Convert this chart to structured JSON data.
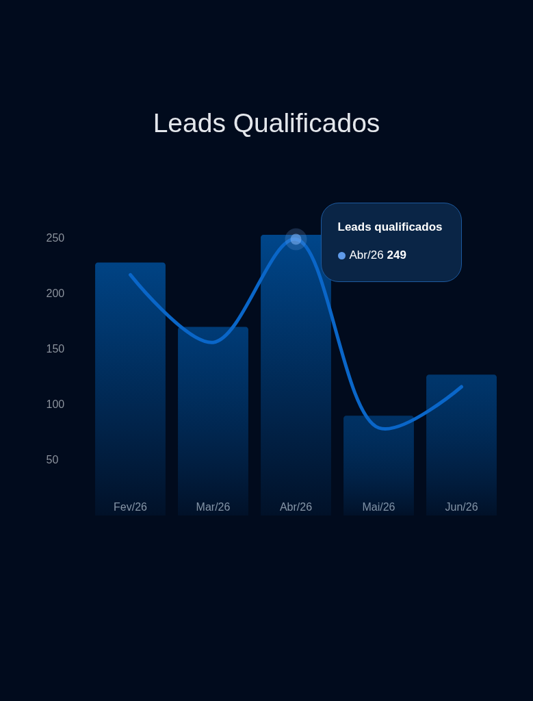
{
  "chart_data": {
    "type": "bar",
    "title": "Leads Qualificados",
    "categories": [
      "Fev/26",
      "Mar/26",
      "Abr/26",
      "Mai/26",
      "Jun/26"
    ],
    "series": [
      {
        "color": "#00468a",
        "values": [
          228,
          170,
          253,
          90,
          127
        ]
      },
      {
        "type": "line",
        "color": "#0a66c8",
        "values": [
          217,
          156,
          249,
          79,
          116
        ]
      },
      {
        "type": "scatter",
        "color": "#74aaee",
        "values": [
          null,
          null,
          249,
          null,
          null
        ]
      }
    ],
    "ylim": [
      0,
      253
    ],
    "yticks": [
      50,
      100,
      150,
      200,
      250
    ],
    "grid": false,
    "annotations": [
      "Leads qualificados",
      "Abr/26 249"
    ]
  }
}
